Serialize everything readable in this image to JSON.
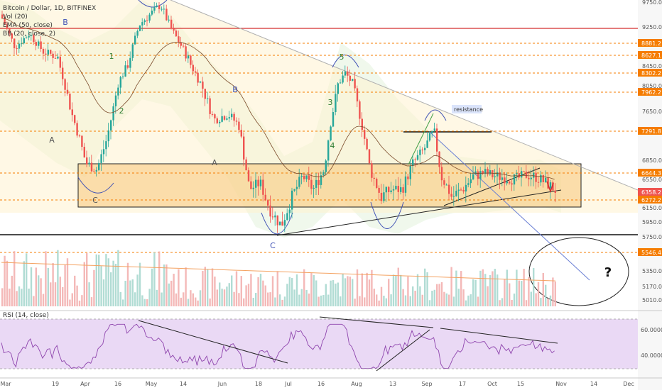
{
  "header": {
    "symbol_line": "Bitcoin / Dollar, 1D, BITFINEX",
    "vol_line": "Vol (20)",
    "ema_line": "EMA (50, close)",
    "bb_line": "BB (20, close, 2)",
    "rsi_line": "RSI (14, close)"
  },
  "chart_data": {
    "type": "candlestick",
    "symbol": "Bitcoin / Dollar",
    "interval": "1D",
    "exchange": "BITFINEX",
    "x_tick_labels": [
      "Mar",
      "19",
      "Apr",
      "16",
      "May",
      "14",
      "Jun",
      "18",
      "Jul",
      "16",
      "Aug",
      "13",
      "Sep",
      "17",
      "Oct",
      "15",
      "Nov",
      "14",
      "Dec"
    ],
    "price_axis_labels": [
      "9750.0",
      "9250.0",
      "8450.0",
      "8050.0",
      "7650.0",
      "6850.0",
      "6550.0",
      "6150.0",
      "5950.0",
      "5750.0",
      "5350.0",
      "5170.0",
      "5010.0"
    ],
    "price_tags": [
      {
        "value": "8881.2",
        "color": "#f57c00"
      },
      {
        "value": "8627.1",
        "color": "#f57c00"
      },
      {
        "value": "8302.2",
        "color": "#f57c00"
      },
      {
        "value": "7962.2",
        "color": "#f57c00"
      },
      {
        "value": "7291.8",
        "color": "#f57c00"
      },
      {
        "value": "6644.3",
        "color": "#f57c00"
      },
      {
        "value": "6358.2",
        "color": "#ef5350"
      },
      {
        "value": "6272.2",
        "color": "#f57c00"
      },
      {
        "value": "5546.4",
        "color": "#f57c00"
      }
    ],
    "horizontal_levels": [
      8881.2,
      8627.1,
      8302.2,
      7962.2,
      7291.8,
      6644.3,
      6272.2,
      5546.4
    ],
    "red_level": 9250,
    "support_level": 5800,
    "range_box": {
      "top": 6760,
      "bottom": 6110
    },
    "rsi_axis_labels": [
      "60.0000",
      "40.0000"
    ],
    "annotations": [
      "A",
      "B",
      "C",
      "1",
      "2",
      "3",
      "4",
      "5",
      "A",
      "B",
      "C",
      "resistance",
      "?"
    ],
    "colors": {
      "up": "#26a69a",
      "down": "#ef5350",
      "level": "#f57c00",
      "rsi": "#8e44ad"
    }
  }
}
